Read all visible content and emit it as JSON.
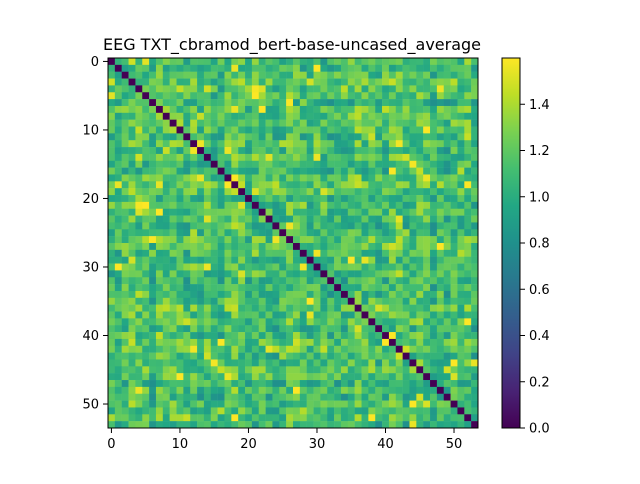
{
  "chart_data": {
    "type": "heatmap",
    "title": "EEG TXT_cbramod_bert-base-uncased_average",
    "xlabel": "",
    "ylabel": "",
    "n_rows": 54,
    "n_cols": 54,
    "x_ticks": [
      0,
      10,
      20,
      30,
      40,
      50
    ],
    "y_ticks": [
      0,
      10,
      20,
      30,
      40,
      50
    ],
    "colorbar": {
      "min": 0.0,
      "max": 1.6,
      "ticks": [
        0.0,
        0.2,
        0.4,
        0.6,
        0.8,
        1.0,
        1.2,
        1.4
      ],
      "tick_labels": [
        "0.0",
        "0.2",
        "0.4",
        "0.6",
        "0.8",
        "1.0",
        "1.2",
        "1.4"
      ]
    },
    "colormap": "viridis",
    "diagonal_value": 0.0,
    "off_diagonal_range": [
      0.8,
      1.6
    ],
    "symmetric": true,
    "grid": false
  }
}
